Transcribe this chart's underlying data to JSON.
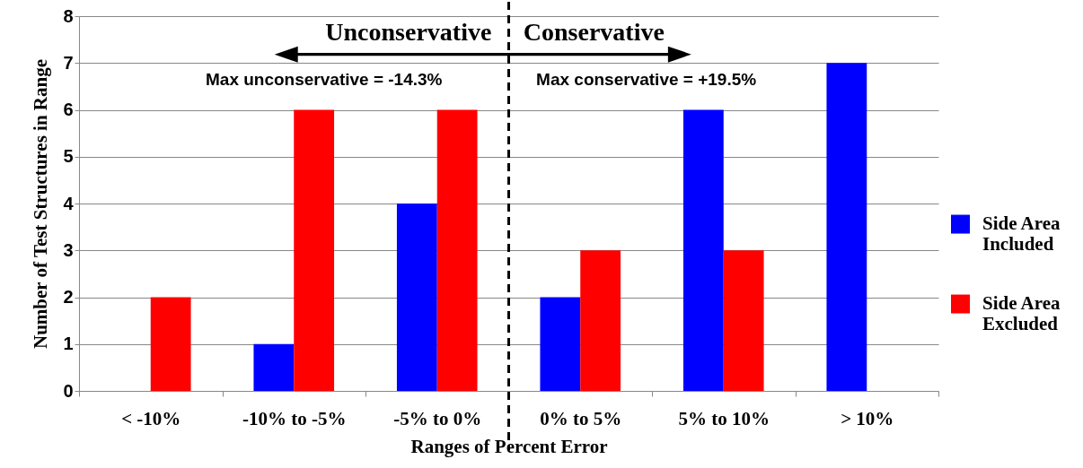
{
  "chart_data": {
    "type": "bar",
    "xlabel": "Ranges of Percent Error",
    "ylabel": "Number of Test Structures in Range",
    "categories": [
      "< -10%",
      "-10% to -5%",
      "-5% to 0%",
      "0% to 5%",
      "5% to 10%",
      "> 10%"
    ],
    "series": [
      {
        "name": "Side Area Included",
        "color": "#0000ff",
        "values": [
          0,
          1,
          4,
          2,
          6,
          7
        ]
      },
      {
        "name": "Side Area Excluded",
        "color": "#ff0000",
        "values": [
          2,
          6,
          6,
          3,
          3,
          0
        ]
      }
    ],
    "ylim": [
      0,
      8
    ],
    "yticks": [
      0,
      1,
      2,
      3,
      4,
      5,
      6,
      7,
      8
    ],
    "grid": "y",
    "legend": "right",
    "ref_lines": [
      {
        "axis": "x",
        "value": "0% to 5%",
        "line_style": "dashed",
        "color": "#000000"
      }
    ],
    "annotations": [
      "Unconservative",
      "Conservative",
      "Max unconservative = -14.3%",
      "Max conservative = +19.5%"
    ]
  }
}
